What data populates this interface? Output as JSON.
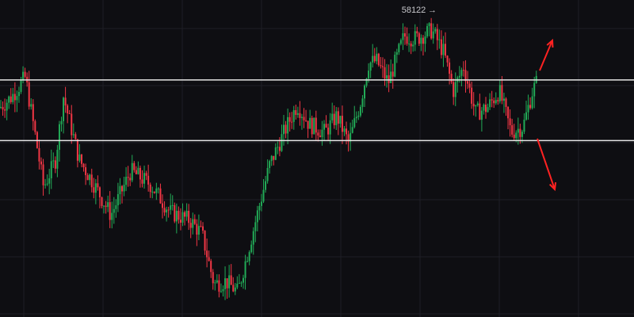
{
  "chart_data": {
    "type": "candlestick",
    "title": "",
    "xlabel": "",
    "ylabel": "",
    "ylim": [
      47000,
      58500
    ],
    "grid": true,
    "colors": {
      "background": "#0e0e12",
      "grid": "#1f1f26",
      "up": "#22ab57",
      "down": "#f23645",
      "level_line": "#e6e6e6",
      "arrow": "#ff2222"
    },
    "high_label": {
      "text": "58122",
      "value": 58122
    },
    "levels": [
      55600,
      53400
    ],
    "arrows": [
      "up",
      "down"
    ],
    "price_path_anchors": [
      [
        0,
        54600
      ],
      [
        15,
        55000
      ],
      [
        32,
        55700
      ],
      [
        45,
        53500
      ],
      [
        55,
        51700
      ],
      [
        70,
        52700
      ],
      [
        80,
        55000
      ],
      [
        100,
        52700
      ],
      [
        115,
        52000
      ],
      [
        140,
        50700
      ],
      [
        165,
        52300
      ],
      [
        190,
        51800
      ],
      [
        215,
        50800
      ],
      [
        240,
        50500
      ],
      [
        255,
        50000
      ],
      [
        270,
        48200
      ],
      [
        285,
        48300
      ],
      [
        300,
        47900
      ],
      [
        320,
        50200
      ],
      [
        340,
        52500
      ],
      [
        360,
        53800
      ],
      [
        375,
        54700
      ],
      [
        390,
        54000
      ],
      [
        410,
        53700
      ],
      [
        425,
        54300
      ],
      [
        440,
        53300
      ],
      [
        455,
        54800
      ],
      [
        465,
        56200
      ],
      [
        475,
        56300
      ],
      [
        490,
        55500
      ],
      [
        510,
        57200
      ],
      [
        525,
        57100
      ],
      [
        545,
        57400
      ],
      [
        560,
        56600
      ],
      [
        572,
        55200
      ],
      [
        585,
        56100
      ],
      [
        600,
        54400
      ],
      [
        615,
        54600
      ],
      [
        630,
        55200
      ],
      [
        645,
        53700
      ],
      [
        660,
        53900
      ],
      [
        672,
        55200
      ],
      [
        680,
        55700
      ]
    ]
  }
}
